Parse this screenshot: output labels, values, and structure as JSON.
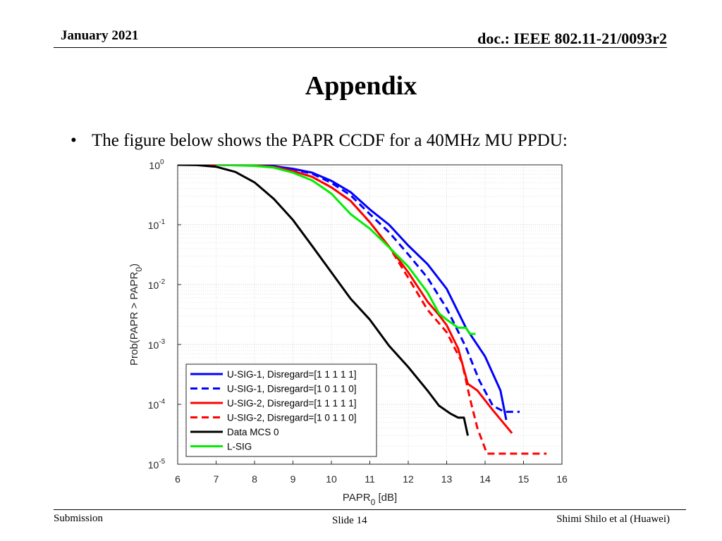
{
  "header": {
    "date": "January 2021",
    "doc": "doc.: IEEE 802.11-21/0093r2"
  },
  "slide_title": "Appendix",
  "bullet": "The figure below shows the PAPR CCDF for a 40MHz MU PPDU:",
  "footer": {
    "left": "Submission",
    "center": "Slide 14",
    "right": "Shimi Shilo et al (Huawei)"
  },
  "chart_data": {
    "type": "line",
    "xlabel": "PAPR",
    "xlabel_sub": "0",
    "xlabel_suffix": " [dB]",
    "ylabel": "Prob(PAPR > PAPR",
    "ylabel_sub": "0",
    "ylabel_suffix": ")",
    "xlim": [
      6,
      16
    ],
    "ylim": [
      1e-05,
      1
    ],
    "yscale": "log",
    "grid": true,
    "minor_grid": true,
    "legend_position": "bottom-left",
    "x_ticks": [
      6,
      7,
      8,
      9,
      10,
      11,
      12,
      13,
      14,
      15,
      16
    ],
    "y_ticks": [
      {
        "value": 1,
        "base": "10",
        "exp": "0"
      },
      {
        "value": 0.1,
        "base": "10",
        "exp": "-1"
      },
      {
        "value": 0.01,
        "base": "10",
        "exp": "-2"
      },
      {
        "value": 0.001,
        "base": "10",
        "exp": "-3"
      },
      {
        "value": 0.0001,
        "base": "10",
        "exp": "-4"
      },
      {
        "value": 1e-05,
        "base": "10",
        "exp": "-5"
      }
    ],
    "series": [
      {
        "name": "U-SIG-1, Disregard=[1 1 1 1 1]",
        "color": "#0000ff",
        "dash": "solid",
        "points": [
          [
            6,
            1
          ],
          [
            7,
            1
          ],
          [
            7.5,
            0.995
          ],
          [
            8,
            0.98
          ],
          [
            8.5,
            0.95
          ],
          [
            9,
            0.86
          ],
          [
            9.5,
            0.74
          ],
          [
            10,
            0.54
          ],
          [
            10.5,
            0.35
          ],
          [
            11,
            0.18
          ],
          [
            11.5,
            0.1
          ],
          [
            12,
            0.045
          ],
          [
            12.5,
            0.022
          ],
          [
            13,
            0.0085
          ],
          [
            13.5,
            0.0019
          ],
          [
            14,
            0.00063
          ],
          [
            14.4,
            0.00017
          ],
          [
            14.55,
            5.5e-05
          ]
        ]
      },
      {
        "name": "U-SIG-1, Disregard=[1 0 1 1 0]",
        "color": "#0000ff",
        "dash": "dashed",
        "points": [
          [
            6,
            1
          ],
          [
            7,
            1
          ],
          [
            7.5,
            0.993
          ],
          [
            8,
            0.975
          ],
          [
            8.5,
            0.94
          ],
          [
            9,
            0.84
          ],
          [
            9.5,
            0.71
          ],
          [
            10,
            0.5
          ],
          [
            10.5,
            0.31
          ],
          [
            11,
            0.15
          ],
          [
            11.5,
            0.075
          ],
          [
            12,
            0.032
          ],
          [
            12.5,
            0.013
          ],
          [
            13,
            0.004
          ],
          [
            13.5,
            0.0009
          ],
          [
            13.85,
            0.00025
          ],
          [
            14.2,
            9.5e-05
          ],
          [
            14.5,
            7.5e-05
          ],
          [
            14.9,
            7.5e-05
          ]
        ]
      },
      {
        "name": "U-SIG-2, Disregard=[1 1 1 1 1]",
        "color": "#ff0000",
        "dash": "solid",
        "points": [
          [
            6,
            1
          ],
          [
            7,
            1
          ],
          [
            7.5,
            0.99
          ],
          [
            8,
            0.97
          ],
          [
            8.5,
            0.92
          ],
          [
            9,
            0.79
          ],
          [
            9.5,
            0.63
          ],
          [
            10,
            0.42
          ],
          [
            10.5,
            0.25
          ],
          [
            11,
            0.11
          ],
          [
            11.5,
            0.043
          ],
          [
            12,
            0.016
          ],
          [
            12.5,
            0.0052
          ],
          [
            12.8,
            0.0031
          ],
          [
            13,
            0.0021
          ],
          [
            13.3,
            0.00085
          ],
          [
            13.55,
            0.00022
          ],
          [
            13.8,
            0.00017
          ],
          [
            14.2,
            8e-05
          ],
          [
            14.7,
            3.3e-05
          ]
        ]
      },
      {
        "name": "U-SIG-2, Disregard=[1 0 1 1 0]",
        "color": "#ff0000",
        "dash": "dashed",
        "points": [
          [
            6,
            1
          ],
          [
            7,
            1
          ],
          [
            7.5,
            0.99
          ],
          [
            8,
            0.97
          ],
          [
            8.5,
            0.92
          ],
          [
            9,
            0.79
          ],
          [
            9.5,
            0.63
          ],
          [
            10,
            0.42
          ],
          [
            10.5,
            0.25
          ],
          [
            11,
            0.11
          ],
          [
            11.5,
            0.043
          ],
          [
            12,
            0.013
          ],
          [
            12.5,
            0.0038
          ],
          [
            13,
            0.0016
          ],
          [
            13.4,
            0.0005
          ],
          [
            13.6,
            0.00013
          ],
          [
            13.8,
            4e-05
          ],
          [
            14.05,
            1.5e-05
          ],
          [
            15.6,
            1.5e-05
          ]
        ]
      },
      {
        "name": "Data MCS 0",
        "color": "#000000",
        "dash": "solid",
        "points": [
          [
            6,
            1
          ],
          [
            6.5,
            0.99
          ],
          [
            7,
            0.93
          ],
          [
            7.5,
            0.76
          ],
          [
            8,
            0.51
          ],
          [
            8.5,
            0.27
          ],
          [
            9,
            0.12
          ],
          [
            9.5,
            0.044
          ],
          [
            10,
            0.016
          ],
          [
            10.5,
            0.0058
          ],
          [
            11,
            0.0026
          ],
          [
            11.5,
            0.00095
          ],
          [
            12,
            0.00042
          ],
          [
            12.5,
            0.00017
          ],
          [
            12.8,
            9.5e-05
          ],
          [
            13.1,
            7e-05
          ],
          [
            13.3,
            6e-05
          ],
          [
            13.45,
            6e-05
          ],
          [
            13.55,
            3e-05
          ]
        ]
      },
      {
        "name": "L-SIG",
        "color": "#00ee00",
        "dash": "solid",
        "points": [
          [
            7,
            1
          ],
          [
            7.5,
            0.98
          ],
          [
            8,
            0.96
          ],
          [
            8.5,
            0.9
          ],
          [
            9,
            0.74
          ],
          [
            9.5,
            0.55
          ],
          [
            10,
            0.33
          ],
          [
            10.5,
            0.15
          ],
          [
            11,
            0.086
          ],
          [
            11.5,
            0.042
          ],
          [
            12,
            0.02
          ],
          [
            12.5,
            0.0074
          ],
          [
            12.8,
            0.0033
          ],
          [
            13,
            0.0026
          ],
          [
            13.3,
            0.0019
          ],
          [
            13.5,
            0.0019
          ],
          [
            13.6,
            0.0015
          ],
          [
            13.75,
            0.0015
          ]
        ]
      }
    ]
  }
}
